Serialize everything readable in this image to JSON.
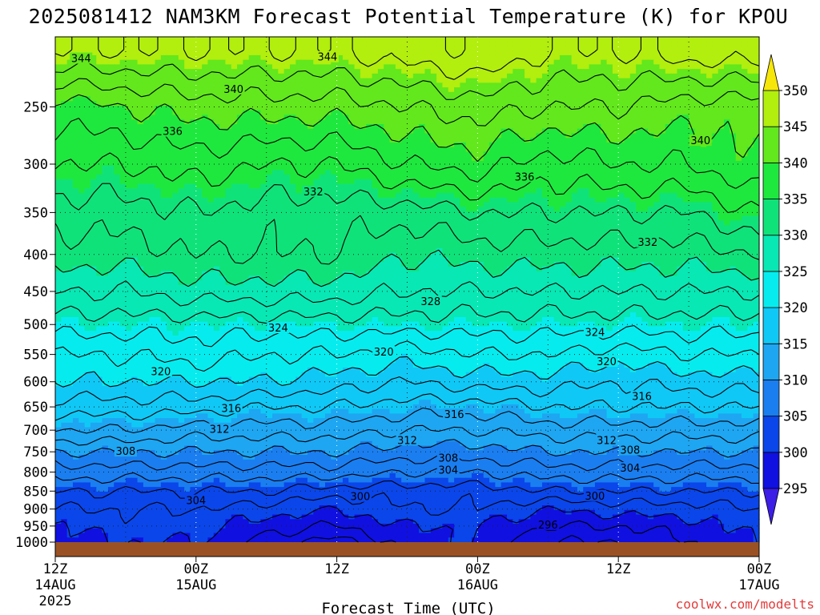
{
  "title": "2025081412 NAM3KM Forecast Potential Temperature (K) for KPOU",
  "credit": "coolwx.com/modelts",
  "colors": {
    "ground": "#9a5224",
    "credit": "#e33b3b",
    "levels": [
      {
        "value": 290,
        "color": "#3c1ee6"
      },
      {
        "value": 295,
        "color": "#1010e0"
      },
      {
        "value": 300,
        "color": "#0a46ea"
      },
      {
        "value": 305,
        "color": "#1a7ef0"
      },
      {
        "value": 310,
        "color": "#1ea6f2"
      },
      {
        "value": 315,
        "color": "#10c8f6"
      },
      {
        "value": 320,
        "color": "#06ecee"
      },
      {
        "value": 325,
        "color": "#08e8b4"
      },
      {
        "value": 330,
        "color": "#10e27a"
      },
      {
        "value": 335,
        "color": "#1ee83e"
      },
      {
        "value": 340,
        "color": "#62e81c"
      },
      {
        "value": 345,
        "color": "#b2ee0e"
      },
      {
        "value": 350,
        "color": "#f6e60a"
      }
    ]
  },
  "chart_data": {
    "type": "heatmap",
    "title": "2025081412 NAM3KM Forecast Potential Temperature (K) for KPOU",
    "xlabel": "Forecast Time (UTC)",
    "ylabel": "",
    "x_hours": [
      0,
      6,
      12,
      18,
      24,
      30,
      36,
      42,
      48,
      54,
      60
    ],
    "x_range": [
      0,
      60
    ],
    "x_ticks": [
      {
        "hour": 0,
        "label": "12Z",
        "date": "14AUG",
        "year": "2025"
      },
      {
        "hour": 12,
        "label": "00Z",
        "date": "15AUG"
      },
      {
        "hour": 24,
        "label": "12Z"
      },
      {
        "hour": 36,
        "label": "00Z",
        "date": "16AUG"
      },
      {
        "hour": 48,
        "label": "12Z"
      },
      {
        "hour": 60,
        "label": "00Z",
        "date": "17AUG"
      }
    ],
    "y_pressure": [
      200,
      250,
      300,
      350,
      400,
      450,
      500,
      550,
      600,
      650,
      700,
      750,
      800,
      850,
      900,
      950,
      1000
    ],
    "y_ticks": [
      "250",
      "300",
      "350",
      "400",
      "450",
      "500",
      "550",
      "600",
      "650",
      "700",
      "750",
      "800",
      "850",
      "900",
      "950",
      "1000"
    ],
    "y_range": [
      200,
      1000
    ],
    "y_scale": "log",
    "grid": true,
    "colorbar": {
      "labels": [
        "295",
        "300",
        "305",
        "310",
        "315",
        "320",
        "325",
        "330",
        "335",
        "340",
        "345",
        "350"
      ],
      "bounds": [
        295,
        300,
        305,
        310,
        315,
        320,
        325,
        330,
        335,
        340,
        345,
        350
      ],
      "extend": "both"
    },
    "contour_interval": 2,
    "contour_labels": [
      {
        "text": "344",
        "hour": 2.2,
        "p": 214
      },
      {
        "text": "344",
        "hour": 23.2,
        "p": 213
      },
      {
        "text": "340",
        "hour": 15.2,
        "p": 236
      },
      {
        "text": "336",
        "hour": 10.0,
        "p": 270
      },
      {
        "text": "340",
        "hour": 55.0,
        "p": 278
      },
      {
        "text": "336",
        "hour": 40.0,
        "p": 312
      },
      {
        "text": "332",
        "hour": 22.0,
        "p": 327
      },
      {
        "text": "332",
        "hour": 50.5,
        "p": 384
      },
      {
        "text": "328",
        "hour": 32.0,
        "p": 464
      },
      {
        "text": "324",
        "hour": 19.0,
        "p": 505
      },
      {
        "text": "324",
        "hour": 46.0,
        "p": 512
      },
      {
        "text": "320",
        "hour": 28.0,
        "p": 545
      },
      {
        "text": "320",
        "hour": 47.0,
        "p": 562
      },
      {
        "text": "320",
        "hour": 9.0,
        "p": 580
      },
      {
        "text": "316",
        "hour": 50.0,
        "p": 628
      },
      {
        "text": "316",
        "hour": 15.0,
        "p": 652
      },
      {
        "text": "316",
        "hour": 34.0,
        "p": 665
      },
      {
        "text": "312",
        "hour": 14.0,
        "p": 697
      },
      {
        "text": "312",
        "hour": 30.0,
        "p": 722
      },
      {
        "text": "312",
        "hour": 47.0,
        "p": 722
      },
      {
        "text": "308",
        "hour": 6.0,
        "p": 748
      },
      {
        "text": "308",
        "hour": 33.5,
        "p": 764
      },
      {
        "text": "308",
        "hour": 49.0,
        "p": 745
      },
      {
        "text": "304",
        "hour": 33.5,
        "p": 794
      },
      {
        "text": "304",
        "hour": 49.0,
        "p": 789
      },
      {
        "text": "304",
        "hour": 12.0,
        "p": 875
      },
      {
        "text": "300",
        "hour": 26.0,
        "p": 864
      },
      {
        "text": "300",
        "hour": 46.0,
        "p": 862
      },
      {
        "text": "296",
        "hour": 42.0,
        "p": 945
      }
    ],
    "theta_field": {
      "hours": [
        0,
        6,
        12,
        18,
        24,
        30,
        36,
        42,
        48,
        54,
        60
      ],
      "pressure": [
        210,
        250,
        300,
        350,
        400,
        450,
        500,
        550,
        600,
        650,
        700,
        750,
        800,
        850,
        900,
        950,
        1000
      ],
      "values": [
        [
          346,
          346,
          346,
          346,
          346,
          347,
          348,
          346,
          346,
          347,
          347
        ],
        [
          339,
          340,
          341,
          341,
          341,
          342,
          343,
          342,
          342,
          341,
          341
        ],
        [
          336,
          336,
          337,
          336,
          336,
          338,
          339,
          337,
          338,
          338,
          340
        ],
        [
          333,
          333,
          334,
          333,
          333,
          333,
          334,
          334,
          334,
          334,
          336
        ],
        [
          331,
          331,
          332,
          332,
          332,
          330,
          331,
          331,
          331,
          331,
          332
        ],
        [
          328,
          328,
          329,
          329,
          329,
          328,
          328,
          328,
          328,
          328,
          328
        ],
        [
          325,
          325,
          325,
          325,
          325,
          325,
          325,
          325,
          325,
          325,
          325
        ],
        [
          322,
          322,
          323,
          322,
          322,
          321,
          322,
          322,
          321,
          322,
          322
        ],
        [
          320,
          320,
          320,
          320,
          319,
          318,
          319,
          319,
          318,
          319,
          319
        ],
        [
          317,
          317,
          317,
          316,
          316,
          315,
          315,
          316,
          316,
          316,
          316
        ],
        [
          314,
          314,
          313,
          313,
          313,
          312,
          312,
          313,
          313,
          313,
          313
        ],
        [
          310,
          310,
          310,
          310,
          310,
          309,
          309,
          310,
          310,
          310,
          310
        ],
        [
          307,
          307,
          307,
          307,
          307,
          306,
          306,
          307,
          307,
          307,
          307
        ],
        [
          304,
          304,
          304,
          304,
          303,
          303,
          303,
          304,
          304,
          304,
          304
        ],
        [
          302,
          302,
          302,
          301,
          300,
          302,
          302,
          300,
          301,
          301,
          302
        ],
        [
          300,
          301,
          301,
          299,
          298,
          300,
          300,
          298,
          298,
          299,
          301
        ],
        [
          299,
          300,
          300,
          297,
          295,
          299,
          300,
          296,
          296,
          298,
          300
        ]
      ]
    }
  }
}
